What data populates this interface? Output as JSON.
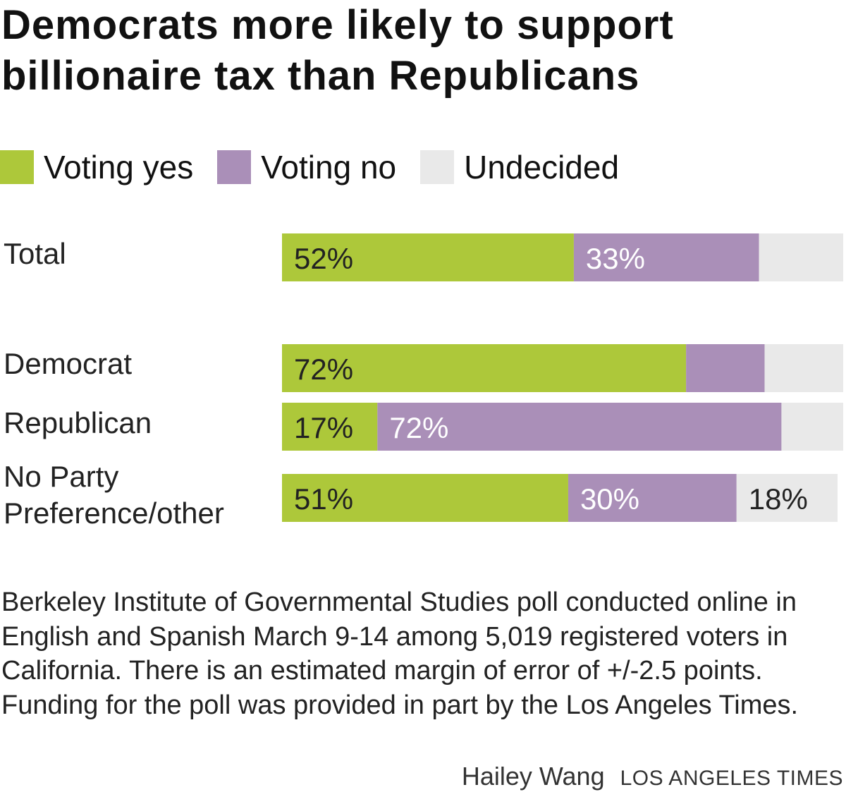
{
  "chart_data": {
    "type": "bar",
    "orientation": "horizontal",
    "stacked": true,
    "title": "Democrats more likely to support billionaire tax than Republicans",
    "categories": [
      "Total",
      "Democrat",
      "Republican",
      "No Party Preference/other"
    ],
    "series": [
      {
        "name": "Voting yes",
        "color": "#adc83a",
        "values": [
          52,
          72,
          17,
          51
        ],
        "labels": [
          "52%",
          "72%",
          "17%",
          "51%"
        ]
      },
      {
        "name": "Voting no",
        "color": "#aa8fb8",
        "values": [
          33,
          14,
          72,
          30
        ],
        "labels": [
          "33%",
          "",
          "72%",
          "30%"
        ]
      },
      {
        "name": "Undecided",
        "color": "#e9e9e9",
        "values": [
          15,
          14,
          11,
          18
        ],
        "labels": [
          "",
          "",
          "",
          "18%"
        ]
      }
    ],
    "xlim": [
      0,
      100
    ],
    "grid": false,
    "legend": "top-left"
  },
  "note": "Berkeley Institute of Governmental Studies poll conducted online in English and Spanish March 9-14 among 5,019 registered voters in California. There is an estimated margin of error of +/-2.5 points. Funding for the poll was provided in part by the Los Angeles Times.",
  "credit": {
    "author": "Hailey Wang",
    "organization": "LOS ANGELES TIMES"
  }
}
